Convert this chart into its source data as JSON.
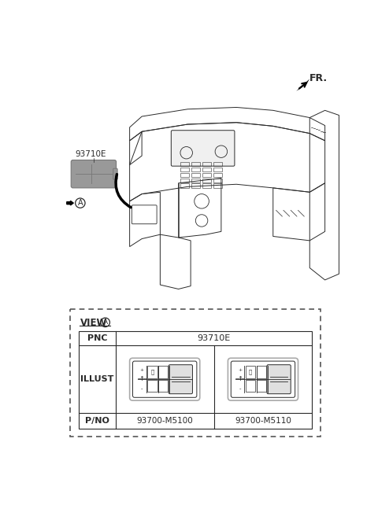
{
  "bg_color": "#ffffff",
  "line_color": "#2a2a2a",
  "fr_label": "FR.",
  "part_label": "93710E",
  "circle_label": "A",
  "view_label": "VIEW",
  "pnc_label": "PNC",
  "pnc_value": "93710E",
  "illust_label": "ILLUST",
  "pno_label": "P/NO",
  "pno_value1": "93700-M5100",
  "pno_value2": "93700-M5110",
  "gray_part": "#999999",
  "gray_part_dark": "#777777",
  "gray_part_light": "#bbbbbb",
  "switch_bg": "#f5f5f5",
  "switch_btn": "#e8e8e8"
}
